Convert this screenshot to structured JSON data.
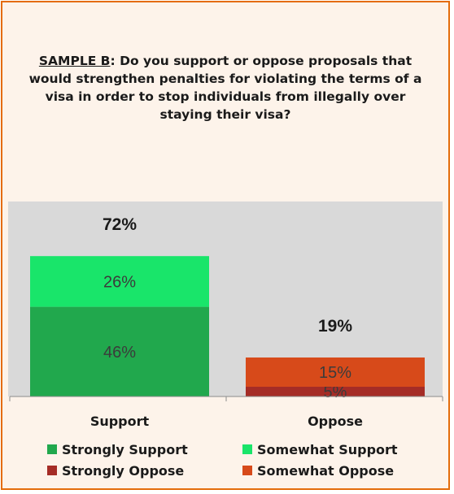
{
  "question": {
    "prefix": "SAMPLE B",
    "text": ": Do you support or oppose proposals that would strengthen penalties for violating the terms of a visa in order to stop individuals from illegally over staying their visa?"
  },
  "chart_data": {
    "type": "bar",
    "stacked": true,
    "categories": [
      "Support",
      "Oppose"
    ],
    "totals": [
      "72%",
      "19%"
    ],
    "series": [
      {
        "name": "Strongly Support",
        "color": "#21a84d",
        "values": [
          46,
          0
        ],
        "labels": [
          "46%",
          ""
        ]
      },
      {
        "name": "Somewhat Support",
        "color": "#19e56a",
        "values": [
          26,
          0
        ],
        "labels": [
          "26%",
          ""
        ]
      },
      {
        "name": "Strongly Oppose",
        "color": "#a52c26",
        "values": [
          0,
          5
        ],
        "labels": [
          "",
          "5%"
        ]
      },
      {
        "name": "Somewhat Oppose",
        "color": "#d74a1a",
        "values": [
          0,
          15
        ],
        "labels": [
          "",
          "15%"
        ]
      }
    ],
    "ylim": [
      0,
      100
    ],
    "grid": false,
    "legend_position": "bottom"
  },
  "legend": [
    {
      "label": "Strongly Support",
      "color": "#21a84d"
    },
    {
      "label": "Somewhat Support",
      "color": "#19e56a"
    },
    {
      "label": "Strongly Oppose",
      "color": "#a52c26"
    },
    {
      "label": "Somewhat Oppose",
      "color": "#d74a1a"
    }
  ]
}
